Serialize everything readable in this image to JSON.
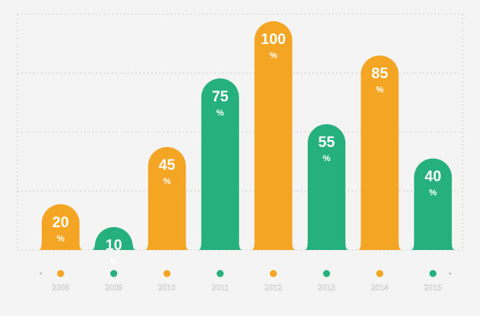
{
  "chart_data": {
    "type": "bar",
    "title": "",
    "xlabel": "",
    "ylabel": "",
    "ylim": [
      0,
      100
    ],
    "unit": "%",
    "grid": true,
    "legend": "none",
    "categories": [
      "2008",
      "2009",
      "2010",
      "2011",
      "2012",
      "2013",
      "2014",
      "2015"
    ],
    "values": [
      20,
      10,
      45,
      75,
      100,
      55,
      85,
      40
    ],
    "data_labels": [
      "20",
      "10",
      "45",
      "75",
      "100",
      "55",
      "85",
      "40"
    ],
    "colors": [
      "#f4a523",
      "#27b07f",
      "#f4a523",
      "#27b07f",
      "#f4a523",
      "#27b07f",
      "#f4a523",
      "#27b07f"
    ]
  }
}
